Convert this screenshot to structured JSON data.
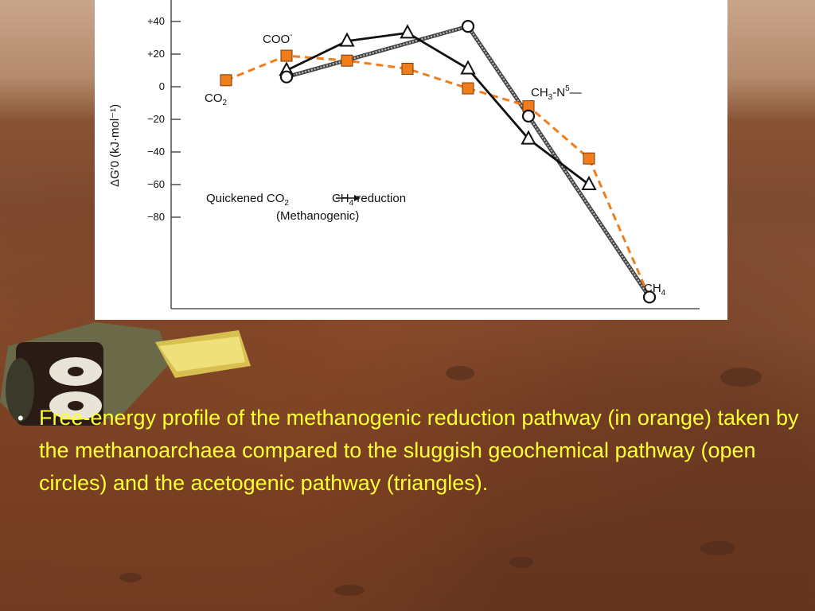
{
  "chart_data": {
    "type": "line",
    "title": "",
    "ylabel": "ΔG′0 (kJ·mol⁻¹)",
    "ylim": [
      -130,
      50
    ],
    "y_ticks": [
      "+40",
      "+20",
      "0",
      "−20",
      "−40",
      "−60",
      "−80"
    ],
    "y_tick_values": [
      40,
      20,
      0,
      -20,
      -40,
      -60,
      -80
    ],
    "x_positions": [
      1,
      2,
      3,
      4,
      5,
      6,
      7,
      8
    ],
    "series": [
      {
        "style": "orange dashed, squares",
        "color": "#f07d1c",
        "x": [
          1,
          2,
          3,
          4,
          5,
          6,
          7,
          8
        ],
        "y": [
          4,
          19,
          16,
          11,
          -1,
          -12,
          -44,
          -129
        ]
      },
      {
        "style": "black solid, triangles",
        "color": "#111111",
        "x": [
          2,
          3,
          4,
          5,
          6,
          7
        ],
        "y": [
          10,
          28,
          33,
          11,
          -32,
          -60
        ]
      },
      {
        "style": "grey hatched, open circles",
        "color": "#555555",
        "x": [
          2,
          5,
          6,
          8
        ],
        "y": [
          6,
          37,
          -18,
          -129
        ]
      }
    ],
    "annotations": {
      "co2": {
        "main": "CO",
        "sub": "2"
      },
      "coo": {
        "main": "COO",
        "sup": "-"
      },
      "ch3n5": {
        "a": "CH",
        "sub": "3",
        "b": "-N",
        "sup": "5",
        "c": "—"
      },
      "ch4": {
        "main": "CH",
        "sub": "4"
      },
      "legend_line1_a": "Quickened CO",
      "legend_line1_sub": "2",
      "legend_line1_b": "CH",
      "legend_line1_sub2": "4",
      "legend_line1_c": " reduction",
      "legend_line2": "(Methanogenic)"
    }
  },
  "caption": {
    "bullet": "•",
    "text": "Free-energy profile of the methanogenic reduction pathway (in orange) taken by the methanoarchaea compared to the sluggish geochemical pathway (open circles) and the acetogenic pathway (triangles)."
  },
  "colors": {
    "caption_text": "#ffff33",
    "orange_series": "#f07d1c",
    "triangle_series": "#111111",
    "circle_series": "#555555"
  }
}
